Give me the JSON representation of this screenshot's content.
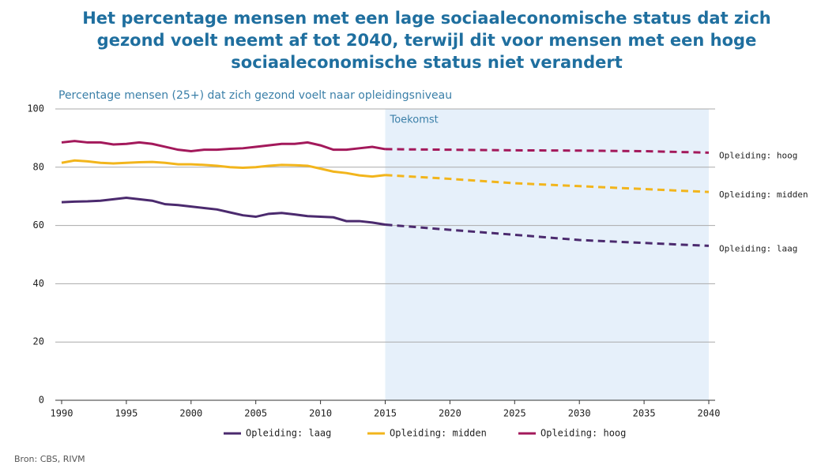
{
  "chart_data": {
    "type": "line",
    "title": [
      "Het percentage mensen met een lage sociaaleconomische status dat zich",
      "gezond voelt neemt af tot 2040, terwijl dit voor mensen met een hoge",
      "sociaaleconomische status niet verandert"
    ],
    "subtitle": "Percentage mensen (25+) dat zich gezond voelt naar opleidingsniveau",
    "source": "Bron: CBS, RIVM",
    "shaded_region": {
      "label": "Toekomst",
      "from": 2015,
      "to": 2040
    },
    "x": [
      1990,
      1991,
      1992,
      1993,
      1994,
      1995,
      1996,
      1997,
      1998,
      1999,
      2000,
      2001,
      2002,
      2003,
      2004,
      2005,
      2006,
      2007,
      2008,
      2009,
      2010,
      2011,
      2012,
      2013,
      2014,
      2015,
      2020,
      2025,
      2030,
      2035,
      2040
    ],
    "series": [
      {
        "name": "Opleiding: laag",
        "color": "#4b2a6e",
        "values": [
          68,
          68.2,
          68.3,
          68.5,
          69,
          69.5,
          69,
          68.5,
          67.3,
          67,
          66.5,
          66,
          65.5,
          64.5,
          63.5,
          63,
          64,
          64.3,
          63.8,
          63.2,
          63,
          62.8,
          61.5,
          61.5,
          61,
          60.3,
          58.5,
          56.8,
          55,
          54,
          53
        ]
      },
      {
        "name": "Opleiding: midden",
        "color": "#f2b51c",
        "values": [
          81.5,
          82.3,
          82,
          81.5,
          81.3,
          81.5,
          81.7,
          81.8,
          81.5,
          81,
          81,
          80.8,
          80.5,
          80,
          79.8,
          80,
          80.5,
          80.8,
          80.7,
          80.5,
          79.5,
          78.5,
          78,
          77.2,
          76.8,
          77.3,
          76,
          74.5,
          73.5,
          72.5,
          71.5
        ]
      },
      {
        "name": "Opleiding: hoog",
        "color": "#a3195b",
        "values": [
          88.5,
          89,
          88.5,
          88.5,
          87.8,
          88,
          88.5,
          88,
          87,
          86,
          85.5,
          86,
          86,
          86.3,
          86.5,
          87,
          87.5,
          88,
          88,
          88.5,
          87.5,
          86,
          86,
          86.5,
          87,
          86.2,
          86,
          85.8,
          85.7,
          85.5,
          85
        ]
      }
    ],
    "xlim": [
      1990,
      2040
    ],
    "xticks": [
      1990,
      1995,
      2000,
      2005,
      2010,
      2015,
      2020,
      2025,
      2030,
      2035,
      2040
    ],
    "ylim": [
      0,
      100
    ],
    "yticks": [
      0,
      20,
      40,
      60,
      80,
      100
    ],
    "grid": true
  }
}
